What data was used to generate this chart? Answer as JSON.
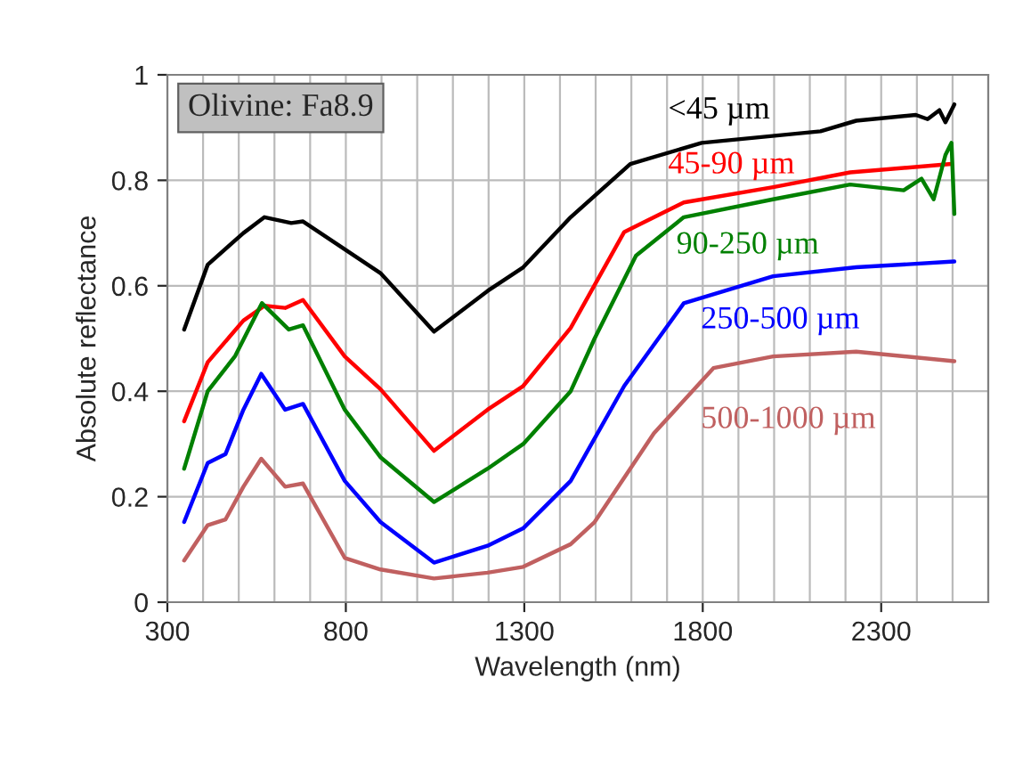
{
  "chart_data": {
    "type": "line",
    "xlabel": "Wavelength (nm)",
    "ylabel": "Absolute reflectance",
    "annotations": [
      "Olivine: Fa8.9"
    ],
    "xlim": [
      300,
      2600
    ],
    "xticks": [
      300,
      800,
      1300,
      1800,
      2300
    ],
    "ylim": [
      0,
      1
    ],
    "yticks": [
      0,
      0.2,
      0.4,
      0.6,
      0.8,
      1
    ],
    "grid": true,
    "series": [
      {
        "name": "<45 µm",
        "color": "#000000",
        "x": [
          347,
          413,
          513,
          572,
          647,
          680,
          797,
          897,
          1047,
          1197,
          1297,
          1430,
          1597,
          1797,
          2130,
          2230,
          2397,
          2430,
          2463,
          2480,
          2505
        ],
        "values": [
          0.517,
          0.64,
          0.7,
          0.73,
          0.719,
          0.722,
          0.669,
          0.624,
          0.513,
          0.59,
          0.635,
          0.73,
          0.831,
          0.871,
          0.893,
          0.913,
          0.924,
          0.916,
          0.933,
          0.91,
          0.944
        ]
      },
      {
        "name": "45-90 µm",
        "color": "#ff0000",
        "x": [
          347,
          413,
          513,
          572,
          630,
          680,
          797,
          897,
          1047,
          1197,
          1297,
          1430,
          1580,
          1747,
          1997,
          2213,
          2497
        ],
        "values": [
          0.343,
          0.455,
          0.534,
          0.562,
          0.558,
          0.573,
          0.466,
          0.404,
          0.287,
          0.365,
          0.41,
          0.52,
          0.702,
          0.758,
          0.787,
          0.815,
          0.831
        ]
      },
      {
        "name": "90-250 µm",
        "color": "#008000",
        "x": [
          347,
          413,
          490,
          565,
          640,
          680,
          797,
          897,
          1047,
          1197,
          1297,
          1430,
          1497,
          1613,
          1747,
          1997,
          2213,
          2363,
          2413,
          2447,
          2480,
          2497,
          2505
        ],
        "values": [
          0.253,
          0.4,
          0.467,
          0.567,
          0.517,
          0.525,
          0.365,
          0.275,
          0.19,
          0.253,
          0.3,
          0.4,
          0.5,
          0.657,
          0.73,
          0.764,
          0.792,
          0.781,
          0.803,
          0.764,
          0.848,
          0.871,
          0.736
        ]
      },
      {
        "name": "250-500 µm",
        "color": "#0000ff",
        "x": [
          347,
          413,
          463,
          513,
          563,
          630,
          680,
          797,
          897,
          1047,
          1197,
          1297,
          1430,
          1580,
          1747,
          1997,
          2230,
          2505
        ],
        "values": [
          0.152,
          0.264,
          0.281,
          0.365,
          0.433,
          0.365,
          0.376,
          0.23,
          0.152,
          0.075,
          0.107,
          0.14,
          0.23,
          0.41,
          0.567,
          0.618,
          0.635,
          0.646
        ]
      },
      {
        "name": "500-1000 µm",
        "color": "#c06060",
        "x": [
          347,
          413,
          463,
          513,
          563,
          630,
          680,
          797,
          897,
          1047,
          1197,
          1297,
          1430,
          1497,
          1663,
          1830,
          1997,
          2230,
          2505
        ],
        "values": [
          0.079,
          0.146,
          0.157,
          0.219,
          0.272,
          0.219,
          0.225,
          0.084,
          0.062,
          0.045,
          0.056,
          0.067,
          0.11,
          0.152,
          0.32,
          0.444,
          0.466,
          0.475,
          0.457
        ]
      }
    ]
  }
}
